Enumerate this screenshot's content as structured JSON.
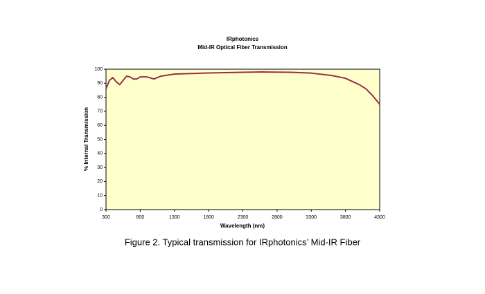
{
  "chart_data": {
    "type": "line",
    "title": "IRphotonics",
    "subtitle": "Mid-IR Optical Fiber Transmission",
    "x_label": "Wavelength (nm)",
    "y_label": "% Internal Transmission",
    "caption": "Figure 2. Typical transmission for IRphotonics’ Mid-IR Fiber",
    "x": [
      300,
      350,
      400,
      450,
      500,
      550,
      600,
      650,
      700,
      750,
      800,
      900,
      1000,
      1100,
      1300,
      1800,
      2300,
      2600,
      3000,
      3300,
      3600,
      3800,
      4000,
      4100,
      4200,
      4300
    ],
    "values": [
      86,
      92,
      94,
      91,
      89,
      92,
      95,
      94.5,
      93,
      93,
      94.5,
      94.5,
      93,
      95,
      96.5,
      97.3,
      97.8,
      98,
      97.8,
      97.2,
      95.5,
      93.5,
      89,
      86,
      81,
      75
    ],
    "color": "#9b2b4a",
    "xlim": [
      300,
      4300
    ],
    "xticks": [
      300,
      800,
      1300,
      1800,
      2300,
      2800,
      3300,
      3800,
      4300
    ],
    "ylim": [
      0,
      100
    ],
    "yticks": [
      0,
      10,
      20,
      30,
      40,
      50,
      60,
      70,
      80,
      90,
      100
    ]
  }
}
